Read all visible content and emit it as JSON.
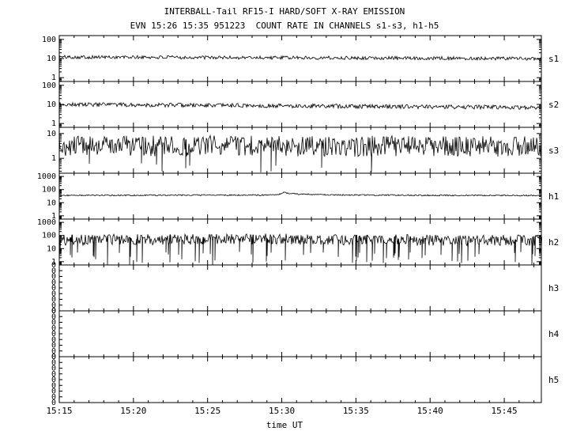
{
  "window": {
    "background": "#ffffff",
    "foreground": "#000000"
  },
  "chart_data": {
    "type": "line",
    "title": "INTERBALL-Tail RF15-I HARD/SOFT X-RAY EMISSION",
    "subtitle": "EVN 15:26 15:35 951223  COUNT RATE IN CHANNELS s1-s3, h1-h5",
    "xlabel": "time UT",
    "x_total_minutes": 32.5,
    "x_minor_minutes": 1,
    "x_major_minutes": 5,
    "x_ticks": [
      {
        "m": 0,
        "label": "15:15"
      },
      {
        "m": 5,
        "label": "15:20"
      },
      {
        "m": 10,
        "label": "15:25"
      },
      {
        "m": 15,
        "label": "15:30"
      },
      {
        "m": 20,
        "label": "15:35"
      },
      {
        "m": 25,
        "label": "15:40"
      },
      {
        "m": 30,
        "label": "15:45"
      }
    ],
    "legend": "none",
    "grid": false,
    "panels": [
      {
        "id": "s1",
        "label": "s1",
        "scale": "log",
        "ylog_range": [
          -0.2,
          2.2
        ],
        "yticks": [
          {
            "log": 2,
            "label": "100"
          },
          {
            "log": 1,
            "label": "10"
          },
          {
            "log": 0,
            "label": "1"
          }
        ],
        "series": {
          "description": "steady noisy count rate near 10 counts",
          "base_points": [
            [
              0,
              12
            ],
            [
              0.5,
              11
            ],
            [
              1,
              10
            ]
          ],
          "noise_decades": 0.09,
          "seed": 101
        }
      },
      {
        "id": "s2",
        "label": "s2",
        "scale": "log",
        "ylog_range": [
          -0.2,
          2.2
        ],
        "yticks": [
          {
            "log": 2,
            "label": "100"
          },
          {
            "log": 1,
            "label": "10"
          },
          {
            "log": 0,
            "label": "1"
          }
        ],
        "series": {
          "description": "noisy rate near 10, slowly declining to ~7",
          "base_points": [
            [
              0,
              10
            ],
            [
              0.6,
              8
            ],
            [
              1,
              7
            ]
          ],
          "noise_decades": 0.11,
          "seed": 202
        }
      },
      {
        "id": "s3",
        "label": "s3",
        "scale": "log",
        "ylog_range": [
          -0.6,
          1.25
        ],
        "yticks": [
          {
            "log": 1,
            "label": "10"
          },
          {
            "log": 0,
            "label": "1"
          }
        ],
        "series": {
          "description": "very noisy rate filling 1-10 band with deep downward spikes",
          "base_points": [
            [
              0,
              3.2
            ],
            [
              1,
              3.0
            ]
          ],
          "noise_decades": 0.42,
          "seed": 303,
          "downspike": {
            "rate": 0.008,
            "max_decades_above_min": 0.5
          },
          "spikes": [
            {
              "x": 0.213,
              "to": 0.3
            },
            {
              "x": 0.418,
              "to": 0.27
            },
            {
              "x": 0.44,
              "to": 0.3
            },
            {
              "x": 0.648,
              "to": 0.28
            }
          ]
        }
      },
      {
        "id": "h1",
        "label": "h1",
        "scale": "log",
        "ylog_range": [
          -0.25,
          3.25
        ],
        "yticks": [
          {
            "log": 3,
            "label": "1000"
          },
          {
            "log": 2,
            "label": "100"
          },
          {
            "log": 1,
            "label": "10"
          },
          {
            "log": 0,
            "label": "1"
          }
        ],
        "series": {
          "description": "quiet rate ~35-40 with small enhancement near 15:30",
          "base_points": [
            [
              0,
              36
            ],
            [
              0.42,
              38
            ],
            [
              0.455,
              42
            ],
            [
              0.465,
              62
            ],
            [
              0.478,
              50
            ],
            [
              0.5,
              44
            ],
            [
              0.55,
              40
            ],
            [
              0.7,
              37
            ],
            [
              1,
              35
            ]
          ],
          "noise_decades": 0.05,
          "seed": 404
        }
      },
      {
        "id": "h2",
        "label": "h2",
        "scale": "log",
        "ylog_range": [
          -0.25,
          3.25
        ],
        "yticks": [
          {
            "log": 3,
            "label": "1000"
          },
          {
            "log": 2,
            "label": "100"
          },
          {
            "log": 1,
            "label": "10"
          },
          {
            "log": 0,
            "label": "1"
          }
        ],
        "series": {
          "description": "dense noisy band between ~10 and ~100 with frequent deep dropouts toward 1",
          "base_points": [
            [
              0,
              45
            ],
            [
              0.46,
              55
            ],
            [
              0.5,
              48
            ],
            [
              1,
              42
            ]
          ],
          "noise_decades": 0.42,
          "seed": 505,
          "downspike": {
            "rate": 0.12,
            "max_decades_above_min": 1.0
          }
        }
      },
      {
        "id": "h3",
        "label": "h3",
        "scale": "zero",
        "zero_tick_count": 9,
        "zero_tick_label": "0",
        "series": null,
        "description": "zero counts - empty panel"
      },
      {
        "id": "h4",
        "label": "h4",
        "scale": "zero",
        "zero_tick_count": 9,
        "zero_tick_label": "0",
        "series": null,
        "description": "zero counts - empty panel"
      },
      {
        "id": "h5",
        "label": "h5",
        "scale": "zero",
        "zero_tick_count": 9,
        "zero_tick_label": "0",
        "series": null,
        "description": "zero counts - empty panel"
      }
    ]
  }
}
